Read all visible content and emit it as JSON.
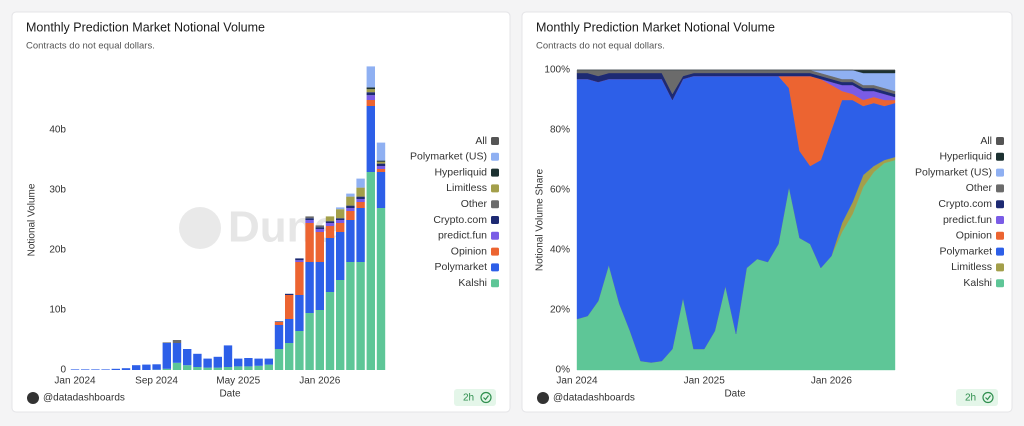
{
  "chart_data": [
    {
      "type": "bar",
      "title": "Monthly Prediction Market Notional Volume",
      "subtitle": "Contracts do not equal dollars.",
      "y_label": "Notional Volume",
      "x_label": "Date",
      "watermark": "Dune",
      "author": "@datadashboards",
      "freshness": "2h",
      "categories": [
        "Jan 2024",
        null,
        null,
        null,
        null,
        null,
        null,
        null,
        "Sep 2024",
        null,
        null,
        null,
        null,
        null,
        null,
        null,
        "May 2025",
        null,
        null,
        null,
        null,
        null,
        null,
        null,
        "Jan 2026",
        null,
        null,
        null,
        null,
        null,
        null
      ],
      "ylim": [
        0,
        50
      ],
      "yticks": [
        0,
        {
          "value": 10,
          "label": "10b"
        },
        {
          "value": 20,
          "label": "20b"
        },
        {
          "value": 30,
          "label": "30b"
        },
        {
          "value": 40,
          "label": "40b"
        }
      ],
      "grid": false,
      "series": [
        {
          "name": "Kalshi",
          "color": "#5ec697",
          "values": [
            0,
            0,
            0,
            0,
            0,
            0,
            0,
            0,
            0.05,
            0.2,
            1.2,
            0.8,
            0.5,
            0.4,
            0.4,
            0.5,
            0.6,
            0.6,
            0.7,
            0.9,
            3.5,
            4.5,
            6.5,
            9.5,
            10,
            13,
            15,
            18,
            18,
            33,
            27
          ]
        },
        {
          "name": "Polymarket",
          "color": "#2d5fe8",
          "values": [
            0.1,
            0.1,
            0.1,
            0.1,
            0.2,
            0.3,
            0.8,
            0.9,
            0.9,
            4.3,
            3.3,
            2.7,
            2.2,
            1.5,
            1.8,
            3.6,
            1.3,
            1.4,
            1.2,
            1.0,
            4,
            4,
            6,
            8.5,
            8,
            9,
            8,
            7,
            9,
            11,
            6
          ]
        },
        {
          "name": "Opinion",
          "color": "#ec6431",
          "values": [
            0,
            0,
            0,
            0,
            0,
            0,
            0,
            0,
            0,
            0,
            0,
            0,
            0,
            0,
            0,
            0,
            0,
            0,
            0,
            0,
            0.5,
            4,
            5.5,
            6.5,
            5,
            2,
            1.5,
            1.5,
            1,
            1,
            0.5
          ]
        },
        {
          "name": "predict.fun",
          "color": "#7a5ce6",
          "values": [
            0,
            0,
            0,
            0,
            0,
            0,
            0,
            0,
            0,
            0,
            0,
            0,
            0,
            0,
            0,
            0,
            0,
            0,
            0,
            0,
            0,
            0,
            0.3,
            0.5,
            0.5,
            0.5,
            0.5,
            0.5,
            0.5,
            0.8,
            0.5
          ]
        },
        {
          "name": "Crypto.com",
          "color": "#1d2a73",
          "values": [
            0,
            0,
            0,
            0,
            0,
            0,
            0,
            0,
            0,
            0,
            0,
            0,
            0,
            0,
            0,
            0,
            0,
            0,
            0,
            0,
            0.1,
            0.2,
            0.3,
            0.3,
            0.3,
            0.3,
            0.3,
            0.4,
            0.4,
            0.5,
            0.4
          ]
        },
        {
          "name": "Other",
          "color": "#6b6b6b",
          "values": [
            0,
            0,
            0,
            0,
            0,
            0,
            0,
            0,
            0,
            0.1,
            0.5,
            0,
            0,
            0,
            0,
            0,
            0,
            0,
            0,
            0,
            0,
            0,
            0,
            0.3,
            0.3,
            0,
            0,
            0,
            0,
            0,
            0
          ]
        },
        {
          "name": "Limitless",
          "color": "#a39f4a",
          "values": [
            0,
            0,
            0,
            0,
            0,
            0,
            0,
            0,
            0,
            0,
            0,
            0,
            0,
            0,
            0,
            0,
            0,
            0,
            0,
            0,
            0,
            0,
            0,
            0,
            0,
            0.8,
            1.5,
            1.5,
            1.5,
            0.5,
            0.3
          ]
        },
        {
          "name": "Hyperliquid",
          "color": "#1c3131",
          "values": [
            0,
            0,
            0,
            0,
            0,
            0,
            0,
            0,
            0,
            0,
            0,
            0,
            0,
            0,
            0,
            0,
            0,
            0,
            0,
            0,
            0,
            0,
            0,
            0,
            0,
            0,
            0,
            0,
            0,
            0.3,
            0.2
          ]
        },
        {
          "name": "Polymarket (US)",
          "color": "#8fb0f2",
          "values": [
            0,
            0,
            0,
            0,
            0,
            0,
            0,
            0,
            0,
            0,
            0,
            0,
            0,
            0,
            0,
            0,
            0,
            0,
            0,
            0,
            0,
            0,
            0,
            0,
            0,
            0,
            0.3,
            0.5,
            1.5,
            3.5,
            3
          ]
        },
        {
          "name": "All",
          "color": "#555555",
          "values": [
            0,
            0,
            0,
            0,
            0,
            0,
            0,
            0,
            0,
            0,
            0,
            0,
            0,
            0,
            0,
            0,
            0,
            0,
            0,
            0,
            0,
            0,
            0,
            0,
            0,
            0,
            0,
            0,
            0,
            0,
            0
          ]
        }
      ]
    },
    {
      "type": "area",
      "title": "Monthly Prediction Market Notional Volume",
      "subtitle": "Contracts do not equal dollars.",
      "y_label": "Notional Volume Share",
      "x_label": "Date",
      "watermark": "Dune",
      "author": "@datadashboards",
      "freshness": "2h",
      "categories": [
        "Jan 2024",
        null,
        null,
        null,
        null,
        null,
        null,
        null,
        null,
        null,
        null,
        null,
        "Jan 2025",
        null,
        null,
        null,
        null,
        null,
        null,
        null,
        null,
        null,
        null,
        null,
        "Jan 2026",
        null,
        null,
        null,
        null,
        null,
        null
      ],
      "ylim": [
        0,
        100
      ],
      "yticks": [
        {
          "value": 0,
          "label": "0%"
        },
        {
          "value": 20,
          "label": "20%"
        },
        {
          "value": 40,
          "label": "40%"
        },
        {
          "value": 60,
          "label": "60%"
        },
        {
          "value": 80,
          "label": "80%"
        },
        {
          "value": 100,
          "label": "100%"
        }
      ],
      "grid": false,
      "series": [
        {
          "name": "Kalshi",
          "color": "#5ec697",
          "values": [
            17,
            18,
            23,
            35,
            22,
            13,
            3,
            2.5,
            3,
            7,
            24,
            7,
            7,
            13,
            28,
            12,
            34,
            37,
            36,
            42,
            61,
            44,
            42,
            34,
            38,
            46,
            52,
            61,
            66,
            69,
            70
          ]
        },
        {
          "name": "Limitless",
          "color": "#a39f4a",
          "values": [
            0,
            0,
            0,
            0,
            0,
            0,
            0,
            0,
            0,
            0,
            0,
            0,
            0,
            0,
            0,
            0,
            0,
            0,
            0,
            0,
            0,
            0,
            0,
            0,
            0,
            3,
            4,
            4,
            2,
            1,
            1
          ]
        },
        {
          "name": "Polymarket",
          "color": "#2d5fe8",
          "values": [
            80,
            79,
            73,
            62,
            75,
            84,
            94,
            94.5,
            94,
            83,
            73,
            91,
            91,
            85,
            70,
            86,
            64,
            61,
            62,
            56,
            33,
            29,
            26,
            36,
            42,
            41,
            34,
            23,
            21,
            18,
            18
          ]
        },
        {
          "name": "Opinion",
          "color": "#ec6431",
          "values": [
            0,
            0,
            0,
            0,
            0,
            0,
            0,
            0,
            0,
            0,
            0,
            0,
            0,
            0,
            0,
            0,
            0,
            0,
            0,
            0,
            4,
            25,
            30,
            27,
            15,
            3,
            2,
            2,
            2,
            2,
            1
          ]
        },
        {
          "name": "predict.fun",
          "color": "#7a5ce6",
          "values": [
            0,
            0,
            0,
            0,
            0,
            0,
            0,
            0,
            0,
            0,
            0,
            0,
            0,
            0,
            0,
            0,
            0,
            0,
            0,
            0,
            0,
            0,
            0,
            0,
            1,
            2,
            3,
            3,
            2,
            2,
            1
          ]
        },
        {
          "name": "Crypto.com",
          "color": "#1d2a73",
          "values": [
            2,
            2,
            2,
            2,
            2,
            2,
            2,
            2,
            2,
            2,
            1,
            1,
            1,
            1,
            1,
            1,
            1,
            1,
            1,
            1,
            1,
            1,
            1,
            1,
            1,
            1,
            1,
            1,
            1,
            1,
            1
          ]
        },
        {
          "name": "Other",
          "color": "#6b6b6b",
          "values": [
            1,
            1,
            2,
            1,
            1,
            1,
            1,
            1,
            1,
            8,
            2,
            1,
            1,
            1,
            1,
            1,
            1,
            1,
            1,
            1,
            1,
            1,
            1,
            1,
            1,
            1,
            1,
            1,
            1,
            1,
            1
          ]
        },
        {
          "name": "Polymarket (US)",
          "color": "#8fb0f2",
          "values": [
            0,
            0,
            0,
            0,
            0,
            0,
            0,
            0,
            0,
            0,
            0,
            0,
            0,
            0,
            0,
            0,
            0,
            0,
            0,
            0,
            0,
            0,
            0,
            1,
            2,
            3,
            3,
            4,
            4,
            5,
            6
          ]
        },
        {
          "name": "Hyperliquid",
          "color": "#1c3131",
          "values": [
            0,
            0,
            0,
            0,
            0,
            0,
            0,
            0,
            0,
            0,
            0,
            0,
            0,
            0,
            0,
            0,
            0,
            0,
            0,
            0,
            0,
            0,
            0,
            0,
            0,
            0,
            0,
            1,
            1,
            1,
            1
          ]
        },
        {
          "name": "All",
          "color": "#555555",
          "values": [
            0,
            0,
            0,
            0,
            0,
            0,
            0,
            0,
            0,
            0,
            0,
            0,
            0,
            0,
            0,
            0,
            0,
            0,
            0,
            0,
            0,
            0,
            0,
            0,
            0,
            0,
            0,
            0,
            0,
            0,
            0
          ]
        }
      ]
    }
  ]
}
